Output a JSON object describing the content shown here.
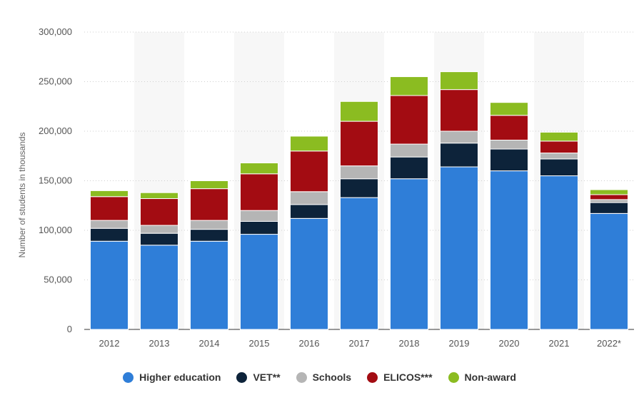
{
  "chart_data": {
    "type": "bar",
    "stacked": true,
    "title": "",
    "xlabel": "",
    "ylabel": "Number of students in thousands",
    "ylim": [
      0,
      300000
    ],
    "yticks": [
      0,
      50000,
      100000,
      150000,
      200000,
      250000,
      300000
    ],
    "ytick_labels": [
      "0",
      "50,000",
      "100,000",
      "150,000",
      "200,000",
      "250,000",
      "300,000"
    ],
    "grid": true,
    "legend_position": "bottom-center",
    "categories": [
      "2012",
      "2013",
      "2014",
      "2015",
      "2016",
      "2017",
      "2018",
      "2019",
      "2020",
      "2021",
      "2022*"
    ],
    "series": [
      {
        "name": "Higher education",
        "color": "#2f7ed8",
        "values": [
          89000,
          85000,
          89000,
          96000,
          112000,
          133000,
          152000,
          164000,
          160000,
          155000,
          117000
        ]
      },
      {
        "name": "VET**",
        "color": "#0d233a",
        "values": [
          13000,
          12000,
          12000,
          13000,
          14000,
          19000,
          22000,
          24000,
          22000,
          17000,
          11000
        ]
      },
      {
        "name": "Schools",
        "color": "#b5b5b5",
        "values": [
          8000,
          8000,
          9000,
          11000,
          13000,
          13000,
          13000,
          12000,
          9000,
          6000,
          3000
        ]
      },
      {
        "name": "ELICOS***",
        "color": "#a30c12",
        "values": [
          24000,
          27000,
          32000,
          37000,
          41000,
          45000,
          49000,
          42000,
          25000,
          12000,
          5000
        ]
      },
      {
        "name": "Non-award",
        "color": "#8bbc21",
        "values": [
          6000,
          6000,
          8000,
          11000,
          15000,
          20000,
          19000,
          18000,
          13000,
          9000,
          5000
        ]
      }
    ]
  }
}
